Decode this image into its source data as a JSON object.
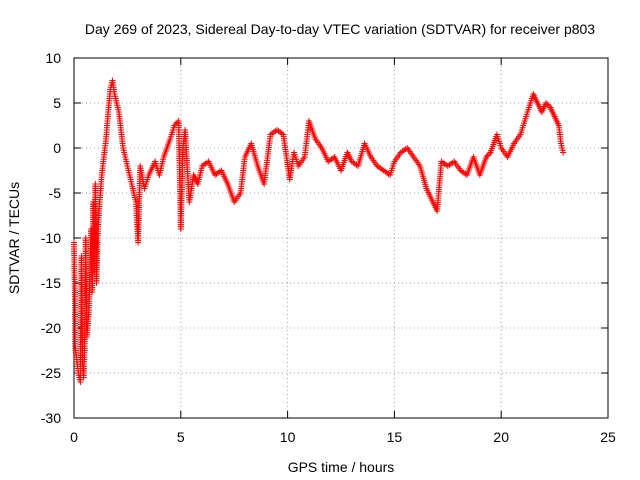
{
  "chart_data": {
    "type": "scatter",
    "title": "Day 269 of 2023, Sidereal Day-to-day VTEC variation (SDTVAR) for receiver p803",
    "xlabel": "GPS time / hours",
    "ylabel": "SDTVAR / TECUs",
    "xlim": [
      0,
      25
    ],
    "ylim": [
      -30,
      10
    ],
    "xticks": [
      0,
      5,
      10,
      15,
      20,
      25
    ],
    "yticks": [
      -30,
      -25,
      -20,
      -15,
      -10,
      -5,
      0,
      5,
      10
    ],
    "grid": true,
    "marker": "+",
    "color": "#ff0000",
    "series": [
      {
        "name": "SDTVAR",
        "points": [
          [
            0.0,
            -10.5
          ],
          [
            0.05,
            -17.5
          ],
          [
            0.05,
            -22.0
          ],
          [
            0.1,
            -23.0
          ],
          [
            0.2,
            -25.0
          ],
          [
            0.3,
            -26.0
          ],
          [
            0.35,
            -12.0
          ],
          [
            0.4,
            -24.0
          ],
          [
            0.45,
            -25.5
          ],
          [
            0.5,
            -22.0
          ],
          [
            0.55,
            -10.0
          ],
          [
            0.6,
            -21.0
          ],
          [
            0.7,
            -18.0
          ],
          [
            0.8,
            -9.0
          ],
          [
            0.85,
            -16.0
          ],
          [
            0.9,
            -6.0
          ],
          [
            0.95,
            -14.0
          ],
          [
            1.0,
            -4.0
          ],
          [
            1.05,
            -15.0
          ],
          [
            1.1,
            -10.0
          ],
          [
            1.2,
            -6.0
          ],
          [
            1.3,
            -3.0
          ],
          [
            1.4,
            -1.0
          ],
          [
            1.5,
            1.0
          ],
          [
            1.6,
            4.0
          ],
          [
            1.7,
            6.5
          ],
          [
            1.8,
            7.5
          ],
          [
            1.9,
            6.0
          ],
          [
            2.0,
            5.0
          ],
          [
            2.1,
            4.0
          ],
          [
            2.2,
            2.0
          ],
          [
            2.3,
            0.0
          ],
          [
            2.5,
            -2.0
          ],
          [
            2.7,
            -4.0
          ],
          [
            2.9,
            -6.0
          ],
          [
            3.0,
            -10.5
          ],
          [
            3.1,
            -2.0
          ],
          [
            3.3,
            -4.5
          ],
          [
            3.5,
            -3.0
          ],
          [
            3.8,
            -1.5
          ],
          [
            4.0,
            -3.0
          ],
          [
            4.2,
            -1.0
          ],
          [
            4.5,
            1.0
          ],
          [
            4.7,
            2.5
          ],
          [
            4.9,
            3.0
          ],
          [
            5.0,
            -9.0
          ],
          [
            5.1,
            0.0
          ],
          [
            5.2,
            2.0
          ],
          [
            5.4,
            -6.0
          ],
          [
            5.6,
            -3.0
          ],
          [
            5.8,
            -4.0
          ],
          [
            6.0,
            -2.0
          ],
          [
            6.3,
            -1.5
          ],
          [
            6.6,
            -3.0
          ],
          [
            6.9,
            -2.5
          ],
          [
            7.2,
            -4.0
          ],
          [
            7.5,
            -6.0
          ],
          [
            7.8,
            -5.0
          ],
          [
            8.0,
            -1.0
          ],
          [
            8.3,
            0.5
          ],
          [
            8.6,
            -2.0
          ],
          [
            8.9,
            -4.0
          ],
          [
            9.2,
            1.5
          ],
          [
            9.5,
            2.0
          ],
          [
            9.8,
            1.5
          ],
          [
            10.1,
            -3.5
          ],
          [
            10.3,
            -0.5
          ],
          [
            10.5,
            -2.0
          ],
          [
            10.8,
            -1.0
          ],
          [
            11.0,
            3.0
          ],
          [
            11.3,
            1.0
          ],
          [
            11.6,
            0.0
          ],
          [
            11.9,
            -1.5
          ],
          [
            12.2,
            -1.0
          ],
          [
            12.5,
            -2.5
          ],
          [
            12.8,
            -0.5
          ],
          [
            13.0,
            -1.5
          ],
          [
            13.3,
            -2.0
          ],
          [
            13.6,
            0.5
          ],
          [
            13.9,
            -1.0
          ],
          [
            14.2,
            -2.0
          ],
          [
            14.5,
            -2.5
          ],
          [
            14.8,
            -3.0
          ],
          [
            15.0,
            -1.5
          ],
          [
            15.3,
            -0.5
          ],
          [
            15.6,
            0.0
          ],
          [
            15.9,
            -1.0
          ],
          [
            16.2,
            -2.0
          ],
          [
            16.5,
            -4.5
          ],
          [
            16.8,
            -6.0
          ],
          [
            17.0,
            -7.0
          ],
          [
            17.2,
            -1.5
          ],
          [
            17.5,
            -2.0
          ],
          [
            17.8,
            -1.5
          ],
          [
            18.1,
            -2.5
          ],
          [
            18.4,
            -3.0
          ],
          [
            18.7,
            -1.0
          ],
          [
            19.0,
            -3.0
          ],
          [
            19.3,
            -1.0
          ],
          [
            19.5,
            -0.5
          ],
          [
            19.8,
            1.5
          ],
          [
            20.0,
            0.0
          ],
          [
            20.3,
            -1.0
          ],
          [
            20.6,
            0.5
          ],
          [
            20.9,
            1.5
          ],
          [
            21.1,
            3.0
          ],
          [
            21.3,
            4.5
          ],
          [
            21.5,
            6.0
          ],
          [
            21.7,
            5.0
          ],
          [
            21.9,
            4.0
          ],
          [
            22.1,
            5.0
          ],
          [
            22.3,
            4.5
          ],
          [
            22.5,
            3.5
          ],
          [
            22.7,
            2.5
          ],
          [
            22.8,
            0.5
          ],
          [
            22.9,
            -0.5
          ]
        ]
      }
    ]
  }
}
